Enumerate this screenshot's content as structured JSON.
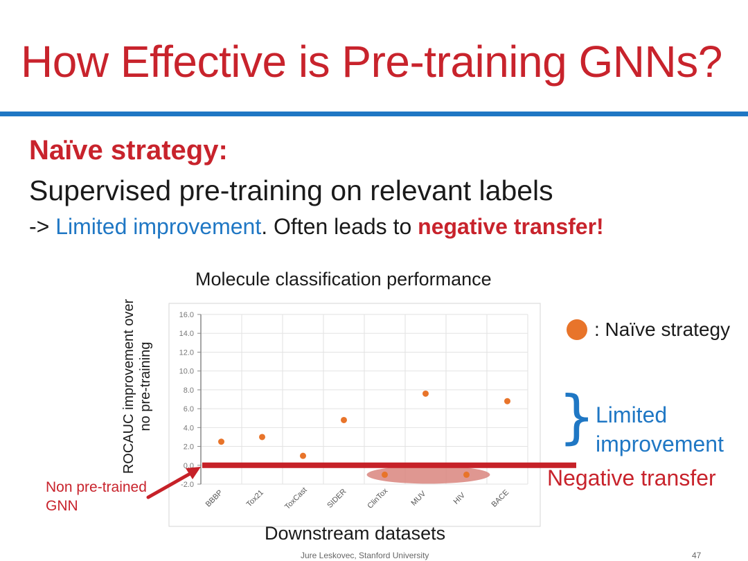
{
  "slide": {
    "title": "How Effective is Pre-training GNNs?",
    "heading": "Naïve strategy:",
    "line2": "Supervised pre-training on relevant labels",
    "line3_prefix": "-> ",
    "line3_blue": "Limited improvement",
    "line3_mid": ". Often leads to ",
    "line3_red": "negative transfer!",
    "legend_label": ": Naïve strategy",
    "brace": "}",
    "limited_line1": "Limited",
    "limited_line2": "improvement",
    "negative_transfer": "Negative transfer",
    "nonpre_line1": "Non pre-trained",
    "nonpre_line2": "GNN",
    "footer": "Jure Leskovec, Stanford University",
    "page_number": "47"
  },
  "colors": {
    "title_red": "#c8232c",
    "accent_blue": "#1f77c4",
    "point_orange": "#e8742a",
    "baseline_red": "#c62128",
    "highlight_ellipse": "#d9857e"
  },
  "chart_data": {
    "type": "scatter",
    "title": "Molecule classification performance",
    "xlabel": "Downstream datasets",
    "ylabel": "ROCAUC improvement over no pre-training",
    "categories": [
      "BBBP",
      "Tox21",
      "ToxCast",
      "SIDER",
      "ClinTox",
      "MUV",
      "HIV",
      "BACE"
    ],
    "series": [
      {
        "name": "Naïve strategy",
        "values": [
          2.5,
          3.0,
          1.0,
          4.8,
          -1.0,
          7.6,
          -1.0,
          6.8
        ]
      }
    ],
    "ylim": [
      -2.0,
      16.0
    ],
    "yticks": [
      "16.0",
      "14.0",
      "12.0",
      "10.0",
      "8.0",
      "6.0",
      "4.0",
      "2.0",
      "0.0",
      "-2.0"
    ],
    "grid": true,
    "baseline": 0.0
  }
}
